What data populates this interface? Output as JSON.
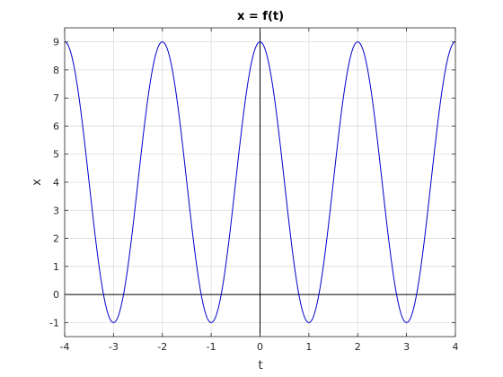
{
  "chart_data": {
    "type": "line",
    "title": "x = f(t)",
    "xlabel": "t",
    "ylabel": "x",
    "xlim": [
      -4,
      4
    ],
    "ylim": [
      -1.5,
      9.5
    ],
    "xticks": [
      -4,
      -3,
      -2,
      -1,
      0,
      1,
      2,
      3,
      4
    ],
    "xtick_labels": [
      "-4",
      "-3",
      "-2",
      "-1",
      "0",
      "1",
      "2",
      "3",
      "4"
    ],
    "yticks": [
      -1,
      0,
      1,
      2,
      3,
      4,
      5,
      6,
      7,
      8,
      9
    ],
    "ytick_labels": [
      "-1",
      "0",
      "1",
      "2",
      "3",
      "4",
      "5",
      "6",
      "7",
      "8",
      "9"
    ],
    "grid": true,
    "reference_lines": {
      "x": 0,
      "y": 0,
      "color": "#000000"
    },
    "series": [
      {
        "color": "#0000cc",
        "x": [
          -4,
          -3.75,
          -3.5,
          -3.25,
          -3,
          -2.75,
          -2.5,
          -2.25,
          -2,
          -1.75,
          -1.5,
          -1.25,
          -1,
          -0.75,
          -0.5,
          -0.25,
          0,
          0.25,
          0.5,
          0.75,
          1,
          1.25,
          1.5,
          1.75,
          2,
          2.25,
          2.5,
          2.75,
          3,
          3.25,
          3.5,
          3.75,
          4
        ],
        "y": [
          9,
          7.54,
          4,
          0.46,
          -1,
          0.46,
          4,
          7.54,
          9,
          7.54,
          4,
          0.46,
          -1,
          0.46,
          4,
          7.54,
          9,
          7.54,
          4,
          0.46,
          -1,
          0.46,
          4,
          7.54,
          9,
          7.54,
          4,
          0.46,
          -1,
          0.46,
          4,
          7.54,
          9
        ],
        "smooth": "cosine"
      }
    ]
  }
}
